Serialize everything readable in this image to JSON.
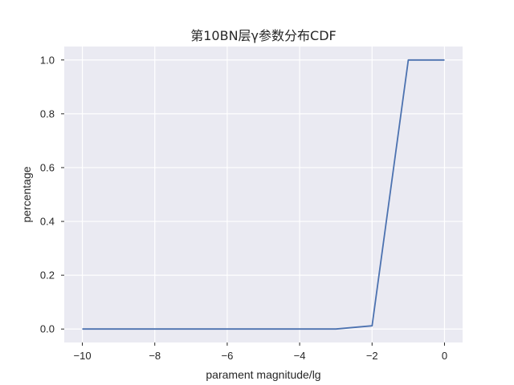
{
  "chart_data": {
    "type": "line",
    "title": "第10BN层γ参数分布CDF",
    "xlabel": "parament magnitude/lg",
    "ylabel": "percentage",
    "xlim": [
      -10.5,
      0.5
    ],
    "ylim": [
      -0.05,
      1.05
    ],
    "xticks": [
      -10,
      -8,
      -6,
      -4,
      -2,
      0
    ],
    "xtick_labels": [
      "−10",
      "−8",
      "−6",
      "−4",
      "−2",
      "0"
    ],
    "yticks": [
      0.0,
      0.2,
      0.4,
      0.6,
      0.8,
      1.0
    ],
    "ytick_labels": [
      "0.0",
      "0.2",
      "0.4",
      "0.6",
      "0.8",
      "1.0"
    ],
    "grid": true,
    "series": [
      {
        "color": "#4c72b0",
        "x": [
          -10,
          -9,
          -8,
          -7,
          -6,
          -5,
          -4,
          -3,
          -2,
          -1,
          0
        ],
        "y": [
          0.0,
          0.0,
          0.0,
          0.0,
          0.0,
          0.0,
          0.0,
          0.0,
          0.012,
          1.0,
          1.0
        ]
      }
    ],
    "colors": {
      "plot_background": "#eaeaf2",
      "grid": "#ffffff",
      "text": "#262626"
    }
  }
}
